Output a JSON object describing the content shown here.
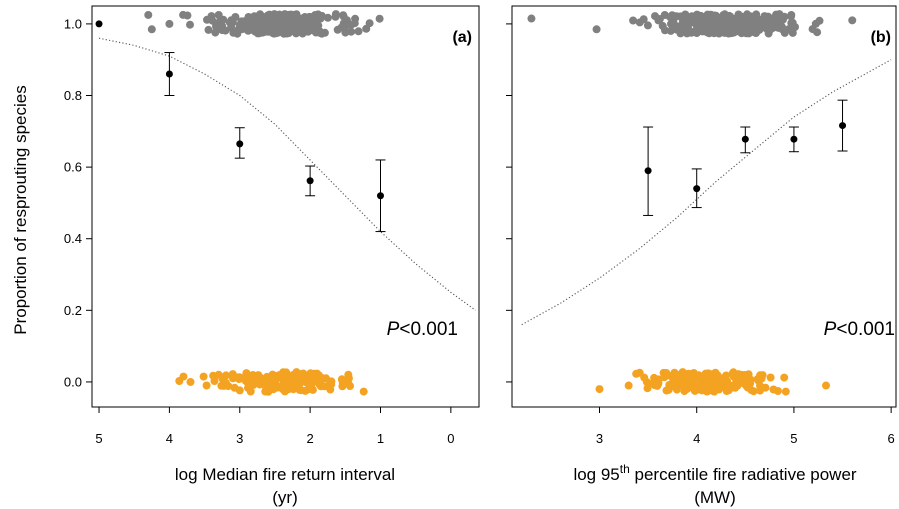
{
  "colors": {
    "resprouter": "#808080",
    "non_resprouter": "#f3a321",
    "mean": "#000000",
    "curve": "#555555"
  },
  "ylabel": "Proportion of resprouting species",
  "chart_data": [
    {
      "type": "scatter",
      "panel": "(a)",
      "xlabel": "log Median fire return interval",
      "xlabel_unit": "(yr)",
      "xlim": [
        5.1,
        -0.4
      ],
      "ylim": [
        -0.07,
        1.05
      ],
      "x_ticks": [
        5,
        4,
        3,
        2,
        1,
        0
      ],
      "y_ticks": [
        0.0,
        0.2,
        0.4,
        0.6,
        0.8,
        1.0
      ],
      "annotation": {
        "italic": "P",
        "text": "<0.001"
      },
      "means": [
        {
          "x": 5,
          "y": 1.0,
          "lo": 1.0,
          "hi": 1.0
        },
        {
          "x": 4,
          "y": 0.86,
          "lo": 0.8,
          "hi": 0.92
        },
        {
          "x": 3,
          "y": 0.665,
          "lo": 0.625,
          "hi": 0.71
        },
        {
          "x": 2,
          "y": 0.562,
          "lo": 0.52,
          "hi": 0.603
        },
        {
          "x": 1,
          "y": 0.52,
          "lo": 0.42,
          "hi": 0.62
        }
      ],
      "fitted_curve": {
        "x": [
          5.0,
          4.5,
          4.0,
          3.5,
          3.0,
          2.5,
          2.0,
          1.5,
          1.0,
          0.5,
          0.0,
          -0.35
        ],
        "y": [
          0.96,
          0.94,
          0.91,
          0.86,
          0.8,
          0.72,
          0.62,
          0.52,
          0.42,
          0.33,
          0.25,
          0.2
        ]
      },
      "resprouter_x_range": [
        0.6,
        4.35
      ],
      "non_resprouter_x_range": [
        0.55,
        4.3
      ],
      "resprouter_n": 260,
      "non_resprouter_n": 150
    },
    {
      "type": "scatter",
      "panel": "(b)",
      "xlabel": "log 95th percentile fire radiative power",
      "xlabel_sup": "th",
      "xlabel_pre": "log 95",
      "xlabel_post": " percentile fire radiative power",
      "xlabel_unit": "(MW)",
      "xlim": [
        2.1,
        6.05
      ],
      "ylim": [
        -0.07,
        1.05
      ],
      "x_ticks": [
        3,
        4,
        5,
        6
      ],
      "annotation": {
        "italic": "P",
        "text": "<0.001"
      },
      "means": [
        {
          "x": 3.5,
          "y": 0.59,
          "lo": 0.465,
          "hi": 0.712
        },
        {
          "x": 4.0,
          "y": 0.54,
          "lo": 0.487,
          "hi": 0.595
        },
        {
          "x": 4.5,
          "y": 0.678,
          "lo": 0.64,
          "hi": 0.712
        },
        {
          "x": 5.0,
          "y": 0.678,
          "lo": 0.643,
          "hi": 0.712
        },
        {
          "x": 5.5,
          "y": 0.716,
          "lo": 0.645,
          "hi": 0.787
        }
      ],
      "fitted_curve": {
        "x": [
          2.2,
          2.6,
          3.0,
          3.4,
          3.8,
          4.2,
          4.6,
          5.0,
          5.4,
          5.8,
          6.0
        ],
        "y": [
          0.16,
          0.22,
          0.29,
          0.37,
          0.46,
          0.56,
          0.65,
          0.74,
          0.81,
          0.87,
          0.9
        ]
      },
      "resprouter_x_range": [
        2.95,
        5.65
      ],
      "non_resprouter_x_range": [
        3.0,
        5.3
      ],
      "resprouter_n": 300,
      "non_resprouter_n": 170
    }
  ]
}
